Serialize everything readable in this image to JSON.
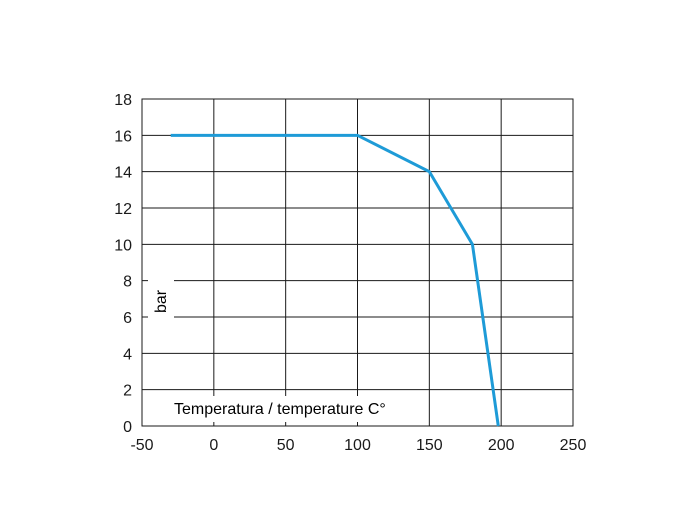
{
  "chart_data": {
    "type": "line",
    "title": "",
    "xlabel": "Temperatura / temperature C°",
    "ylabel": "bar",
    "xlim": [
      -50,
      250
    ],
    "ylim": [
      0,
      18
    ],
    "x_ticks": [
      -50,
      0,
      50,
      100,
      150,
      200,
      250
    ],
    "y_ticks": [
      0,
      2,
      4,
      6,
      8,
      10,
      12,
      14,
      16,
      18
    ],
    "x_tick_labels": [
      "-50",
      "0",
      "50",
      "100",
      "150",
      "200",
      "250"
    ],
    "y_tick_labels": [
      "0",
      "2",
      "4",
      "6",
      "8",
      "10",
      "12",
      "14",
      "16",
      "18"
    ],
    "grid": true,
    "series": [
      {
        "color": "#1e9bd7",
        "x": [
          -30,
          100,
          150,
          180,
          198
        ],
        "y": [
          16,
          16,
          14,
          10,
          0
        ]
      }
    ]
  }
}
